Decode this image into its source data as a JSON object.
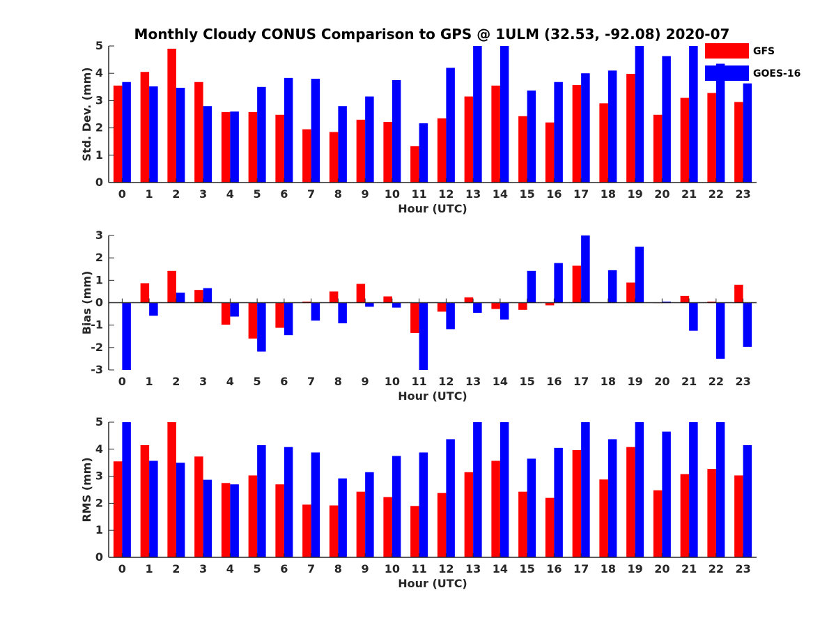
{
  "chart_data": [
    {
      "type": "bar",
      "panel": "std-dev",
      "title": "Monthly Cloudy CONUS Comparison to GPS @ 1ULM (32.53, -92.08) 2020-07",
      "xlabel": "Hour (UTC)",
      "ylabel": "Std. Dev. (mm)",
      "ylim": [
        0,
        5
      ],
      "yticks": [
        0,
        1,
        2,
        3,
        4,
        5
      ],
      "categories": [
        "0",
        "1",
        "2",
        "3",
        "4",
        "5",
        "6",
        "7",
        "8",
        "9",
        "10",
        "11",
        "12",
        "13",
        "14",
        "15",
        "16",
        "17",
        "18",
        "19",
        "20",
        "21",
        "22",
        "23"
      ],
      "series": [
        {
          "name": "GFS",
          "color": "#ff0000",
          "values": [
            3.55,
            4.05,
            4.9,
            3.68,
            2.58,
            2.58,
            2.48,
            1.95,
            1.85,
            2.3,
            2.22,
            1.33,
            2.35,
            3.15,
            3.55,
            2.43,
            2.2,
            3.57,
            2.9,
            3.98,
            2.48,
            3.1,
            3.28,
            2.95
          ]
        },
        {
          "name": "GOES-16",
          "color": "#0000ff",
          "values": [
            3.68,
            3.52,
            3.47,
            2.8,
            2.6,
            3.5,
            3.83,
            3.8,
            2.8,
            3.15,
            3.75,
            2.17,
            4.2,
            5.0,
            5.0,
            3.37,
            3.68,
            4.0,
            4.1,
            5.0,
            4.63,
            5.0,
            4.35,
            3.63
          ]
        }
      ],
      "legend": {
        "position": "top-right",
        "entries": [
          "GFS",
          "GOES-16"
        ]
      }
    },
    {
      "type": "bar",
      "panel": "bias",
      "xlabel": "Hour (UTC)",
      "ylabel": "Bias (mm)",
      "ylim": [
        -3,
        3
      ],
      "yticks": [
        -3,
        -2,
        -1,
        0,
        1,
        2,
        3
      ],
      "categories": [
        "0",
        "1",
        "2",
        "3",
        "4",
        "5",
        "6",
        "7",
        "8",
        "9",
        "10",
        "11",
        "12",
        "13",
        "14",
        "15",
        "16",
        "17",
        "18",
        "19",
        "20",
        "21",
        "22",
        "23"
      ],
      "series": [
        {
          "name": "GFS",
          "color": "#ff0000",
          "values": [
            0.0,
            0.87,
            1.42,
            0.57,
            -0.98,
            -1.6,
            -1.12,
            0.05,
            0.5,
            0.84,
            0.28,
            -1.35,
            -0.4,
            0.24,
            -0.28,
            -0.32,
            -0.12,
            1.65,
            0.0,
            0.9,
            -0.02,
            0.3,
            0.05,
            0.8
          ]
        },
        {
          "name": "GOES-16",
          "color": "#0000ff",
          "values": [
            -3.0,
            -0.58,
            0.45,
            0.65,
            -0.62,
            -2.18,
            -1.45,
            -0.8,
            -0.92,
            -0.18,
            -0.22,
            -3.0,
            -1.18,
            -0.45,
            -0.75,
            1.42,
            1.77,
            3.0,
            1.45,
            2.5,
            0.05,
            -1.25,
            -2.5,
            -1.97
          ]
        }
      ]
    },
    {
      "type": "bar",
      "panel": "rms",
      "xlabel": "Hour (UTC)",
      "ylabel": "RMS (mm)",
      "ylim": [
        0,
        5
      ],
      "yticks": [
        0,
        1,
        2,
        3,
        4,
        5
      ],
      "categories": [
        "0",
        "1",
        "2",
        "3",
        "4",
        "5",
        "6",
        "7",
        "8",
        "9",
        "10",
        "11",
        "12",
        "13",
        "14",
        "15",
        "16",
        "17",
        "18",
        "19",
        "20",
        "21",
        "22",
        "23"
      ],
      "series": [
        {
          "name": "GFS",
          "color": "#ff0000",
          "values": [
            3.55,
            4.15,
            5.0,
            3.73,
            2.75,
            3.03,
            2.7,
            1.95,
            1.92,
            2.43,
            2.23,
            1.9,
            2.38,
            3.15,
            3.57,
            2.43,
            2.2,
            3.97,
            2.88,
            4.08,
            2.48,
            3.08,
            3.27,
            3.03
          ]
        },
        {
          "name": "GOES-16",
          "color": "#0000ff",
          "values": [
            5.0,
            3.57,
            3.5,
            2.87,
            2.7,
            4.15,
            4.08,
            3.88,
            2.92,
            3.15,
            3.75,
            3.88,
            4.37,
            5.0,
            5.0,
            3.65,
            4.05,
            5.0,
            4.37,
            5.0,
            4.65,
            5.0,
            5.0,
            4.15
          ]
        }
      ]
    }
  ]
}
